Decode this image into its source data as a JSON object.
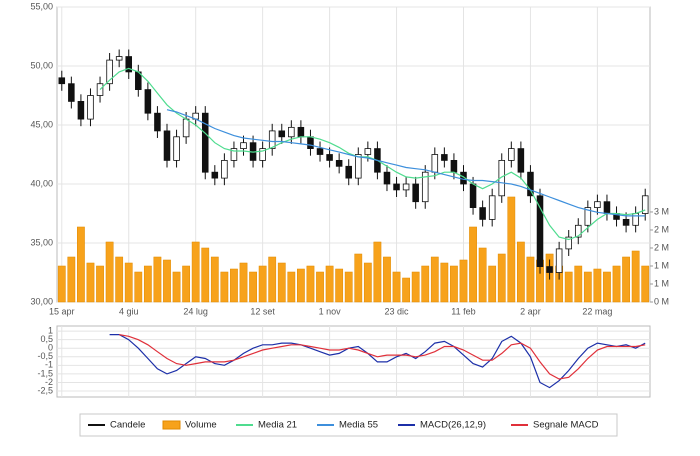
{
  "chart_data": [
    {
      "type": "candlestick",
      "categories": [
        "15 apr",
        null,
        null,
        null,
        null,
        null,
        null,
        "4 giu",
        null,
        null,
        null,
        null,
        null,
        null,
        "24 lug",
        null,
        null,
        null,
        null,
        null,
        null,
        "12 set",
        null,
        null,
        null,
        null,
        null,
        null,
        "1 nov",
        null,
        null,
        null,
        null,
        null,
        null,
        "23 dic",
        null,
        null,
        null,
        null,
        null,
        null,
        "11 feb",
        null,
        null,
        null,
        null,
        null,
        null,
        "2 apr",
        null,
        null,
        null,
        null,
        null,
        null,
        "22 mag",
        null,
        null,
        null,
        null,
        null
      ],
      "series": [
        {
          "name": "Candele",
          "type": "candlestick",
          "color": "#111111",
          "open": [
            49.0,
            48.5,
            47.0,
            45.5,
            47.5,
            48.5,
            50.5,
            50.8,
            49.5,
            48.0,
            46.0,
            44.5,
            42.0,
            44.0,
            45.5,
            46.0,
            41.0,
            40.5,
            42.0,
            43.0,
            43.5,
            42.0,
            43.0,
            44.5,
            44.0,
            44.8,
            44.0,
            43.0,
            42.5,
            42.0,
            41.5,
            40.5,
            42.5,
            43.0,
            41.0,
            40.0,
            39.5,
            40.0,
            38.5,
            41.0,
            42.5,
            42.0,
            41.0,
            40.0,
            38.0,
            37.0,
            39.0,
            42.0,
            43.0,
            41.0,
            39.0,
            33.0,
            32.5,
            34.5,
            35.5,
            36.5,
            38.0,
            38.5,
            37.5,
            37.0,
            36.5,
            37.5
          ],
          "high": [
            49.6,
            49.1,
            47.6,
            48.1,
            49.1,
            51.1,
            51.4,
            51.4,
            50.1,
            48.6,
            46.6,
            45.1,
            44.6,
            46.1,
            46.6,
            46.6,
            41.6,
            42.6,
            43.6,
            44.1,
            44.1,
            43.6,
            45.1,
            45.1,
            45.4,
            45.4,
            44.6,
            43.6,
            43.1,
            42.6,
            42.1,
            43.1,
            43.6,
            43.6,
            41.6,
            40.6,
            40.6,
            40.6,
            41.6,
            43.1,
            43.1,
            42.6,
            41.6,
            40.6,
            38.6,
            39.6,
            42.6,
            43.6,
            43.6,
            41.6,
            39.6,
            33.6,
            35.1,
            36.1,
            37.1,
            38.6,
            39.1,
            39.1,
            38.1,
            37.6,
            38.1,
            39.6
          ],
          "low": [
            47.9,
            46.4,
            44.9,
            44.9,
            46.9,
            47.9,
            49.9,
            48.9,
            47.4,
            45.4,
            43.9,
            41.4,
            41.4,
            43.4,
            44.9,
            40.4,
            39.9,
            39.9,
            41.4,
            42.4,
            41.4,
            41.4,
            42.4,
            43.4,
            43.4,
            43.4,
            42.4,
            41.9,
            41.4,
            40.9,
            39.9,
            39.9,
            41.9,
            40.4,
            39.4,
            38.9,
            38.9,
            37.9,
            37.9,
            40.4,
            41.4,
            40.4,
            39.4,
            37.4,
            36.4,
            36.4,
            38.4,
            41.4,
            40.4,
            38.4,
            32.4,
            31.9,
            31.9,
            33.9,
            34.9,
            35.9,
            37.4,
            36.9,
            36.4,
            35.9,
            35.9,
            36.9
          ],
          "close": [
            48.5,
            47.0,
            45.5,
            47.5,
            48.5,
            50.5,
            50.8,
            49.5,
            48.0,
            46.0,
            44.5,
            42.0,
            44.0,
            45.5,
            46.0,
            41.0,
            40.5,
            42.0,
            43.0,
            43.5,
            42.0,
            43.0,
            44.5,
            44.0,
            44.8,
            44.0,
            43.0,
            42.5,
            42.0,
            41.5,
            40.5,
            42.5,
            43.0,
            41.0,
            40.0,
            39.5,
            40.0,
            38.5,
            41.0,
            42.5,
            42.0,
            41.0,
            40.0,
            38.0,
            37.0,
            39.0,
            42.0,
            43.0,
            41.0,
            39.0,
            33.0,
            32.5,
            34.5,
            35.5,
            36.5,
            38.0,
            38.5,
            37.5,
            37.0,
            36.5,
            37.5,
            39.0
          ]
        },
        {
          "name": "Volume",
          "type": "bar",
          "axis": "y2",
          "color": "#f7a21b",
          "values": [
            1.2,
            1.5,
            2.5,
            1.3,
            1.2,
            2.0,
            1.5,
            1.3,
            1.0,
            1.2,
            1.5,
            1.4,
            1.0,
            1.2,
            2.0,
            1.8,
            1.5,
            1.0,
            1.1,
            1.3,
            1.0,
            1.2,
            1.5,
            1.3,
            1.0,
            1.1,
            1.2,
            1.0,
            1.2,
            1.1,
            1.0,
            1.6,
            1.3,
            2.0,
            1.5,
            1.0,
            0.8,
            1.0,
            1.2,
            1.5,
            1.3,
            1.2,
            1.4,
            2.5,
            1.8,
            1.2,
            1.6,
            3.5,
            2.0,
            1.5,
            1.4,
            1.6,
            1.2,
            1.0,
            1.2,
            1.0,
            1.1,
            1.0,
            1.2,
            1.5,
            1.7,
            1.2
          ]
        },
        {
          "name": "Media 21",
          "type": "line",
          "color": "#4fdc8f",
          "values": [
            null,
            null,
            null,
            null,
            48.0,
            48.8,
            49.5,
            49.8,
            49.5,
            48.7,
            47.7,
            46.7,
            46.0,
            45.5,
            45.0,
            44.3,
            43.5,
            43.0,
            42.8,
            42.8,
            42.7,
            42.8,
            43.1,
            43.5,
            43.8,
            44.0,
            44.0,
            43.8,
            43.5,
            43.1,
            42.6,
            42.3,
            42.3,
            42.0,
            41.5,
            41.0,
            40.6,
            40.5,
            40.6,
            40.7,
            41.0,
            41.0,
            40.6,
            40.0,
            39.6,
            40.0,
            40.6,
            41.0,
            40.5,
            39.5,
            38.0,
            36.5,
            35.5,
            35.3,
            35.6,
            36.3,
            37.0,
            37.5,
            37.5,
            37.4,
            37.5,
            37.8
          ]
        },
        {
          "name": "Media 55",
          "type": "line",
          "color": "#3d8fdc",
          "values": [
            null,
            null,
            null,
            null,
            null,
            null,
            null,
            null,
            null,
            null,
            null,
            46.3,
            46.1,
            45.8,
            45.5,
            45.1,
            44.7,
            44.4,
            44.1,
            43.9,
            43.8,
            43.7,
            43.6,
            43.6,
            43.5,
            43.4,
            43.3,
            43.1,
            42.9,
            42.7,
            42.5,
            42.3,
            42.2,
            42.0,
            41.8,
            41.6,
            41.4,
            41.3,
            41.2,
            41.0,
            40.8,
            40.6,
            40.4,
            40.3,
            40.3,
            40.2,
            40.1,
            40.0,
            39.8,
            39.5,
            39.2,
            38.9,
            38.6,
            38.3,
            38.0,
            37.8,
            37.6,
            37.5,
            37.4,
            37.3,
            37.3,
            37.3
          ]
        }
      ],
      "ylim": [
        30,
        55
      ],
      "yticks": [
        {
          "value": 30,
          "label": "30,00"
        },
        {
          "value": 35,
          "label": "35,00"
        },
        {
          "value": 40,
          "label": "40,00"
        },
        {
          "value": 45,
          "label": "45,00"
        },
        {
          "value": 50,
          "label": "50,00"
        },
        {
          "value": 55,
          "label": "55,00"
        }
      ],
      "y2lim": [
        0,
        9.83
      ],
      "y2ticks": [
        {
          "value": 0,
          "label": "0 M"
        },
        {
          "value": 0.6,
          "label": "1 M"
        },
        {
          "value": 1.2,
          "label": "1 M"
        },
        {
          "value": 1.8,
          "label": "2 M"
        },
        {
          "value": 2.4,
          "label": "2 M"
        },
        {
          "value": 3.0,
          "label": "3 M"
        }
      ],
      "grid": true
    },
    {
      "type": "line",
      "series": [
        {
          "name": "MACD(26,12,9)",
          "type": "line",
          "color": "#1c2fa8",
          "values": [
            null,
            null,
            null,
            null,
            null,
            0.8,
            0.8,
            0.5,
            0.0,
            -0.6,
            -1.2,
            -1.5,
            -1.3,
            -0.9,
            -0.5,
            -0.6,
            -0.9,
            -1.0,
            -0.7,
            -0.3,
            0.0,
            0.2,
            0.2,
            0.3,
            0.3,
            0.2,
            0.0,
            -0.2,
            -0.4,
            -0.3,
            0.0,
            0.1,
            -0.3,
            -0.8,
            -0.8,
            -0.5,
            -0.3,
            -0.6,
            -0.2,
            0.3,
            0.4,
            0.1,
            -0.4,
            -0.9,
            -1.1,
            -0.6,
            0.4,
            0.7,
            0.3,
            -0.5,
            -2.0,
            -2.3,
            -1.9,
            -1.3,
            -0.6,
            0.0,
            0.3,
            0.2,
            0.1,
            0.2,
            0.0,
            0.3
          ]
        },
        {
          "name": "Segnale MACD",
          "type": "line",
          "color": "#e0303a",
          "values": [
            null,
            null,
            null,
            null,
            null,
            null,
            0.8,
            0.7,
            0.5,
            0.2,
            -0.2,
            -0.6,
            -0.9,
            -1.0,
            -0.9,
            -0.8,
            -0.8,
            -0.8,
            -0.7,
            -0.5,
            -0.3,
            -0.1,
            0.0,
            0.1,
            0.2,
            0.2,
            0.1,
            0.0,
            -0.1,
            -0.1,
            0.0,
            -0.1,
            -0.3,
            -0.5,
            -0.4,
            -0.4,
            -0.4,
            -0.5,
            -0.4,
            -0.2,
            0.1,
            0.1,
            -0.1,
            -0.4,
            -0.7,
            -0.7,
            -0.3,
            0.2,
            0.3,
            0.0,
            -0.8,
            -1.5,
            -1.8,
            -1.7,
            -1.2,
            -0.6,
            -0.1,
            0.1,
            0.1,
            0.1,
            0.1,
            0.2
          ]
        }
      ],
      "ylim": [
        -2.85,
        1.3
      ],
      "yticks": [
        1,
        {
          "value": 0.5,
          "label": "0,5"
        },
        0,
        {
          "value": -0.5,
          "label": "-0,5"
        },
        -1,
        {
          "value": -1.5,
          "label": "-1,5"
        },
        -2,
        {
          "value": -2.5,
          "label": "-2,5"
        }
      ],
      "grid": true
    }
  ]
}
